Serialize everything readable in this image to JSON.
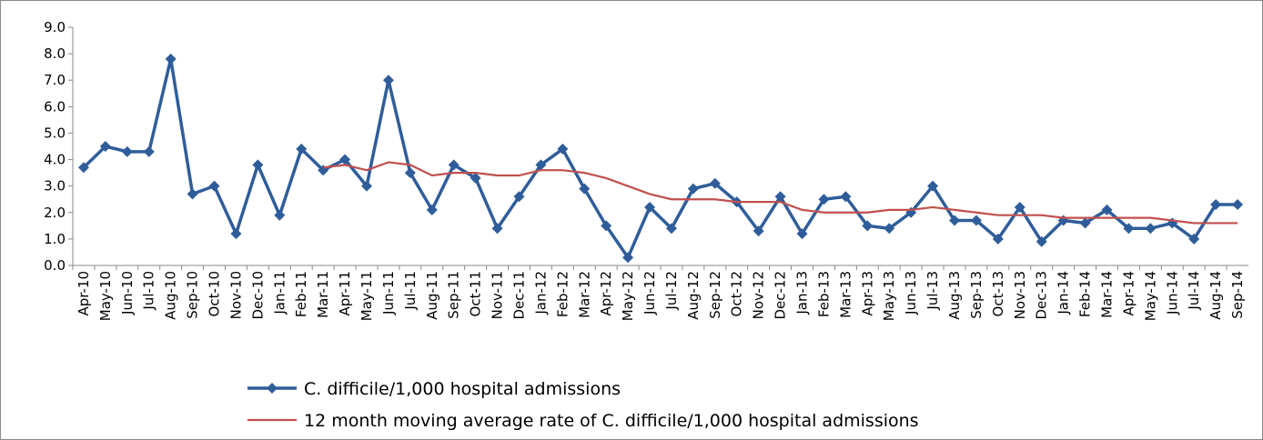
{
  "chart_data": {
    "type": "line",
    "categories": [
      "Apr-10",
      "May-10",
      "Jun-10",
      "Jul-10",
      "Aug-10",
      "Sep-10",
      "Oct-10",
      "Nov-10",
      "Dec-10",
      "Jan-11",
      "Feb-11",
      "Mar-11",
      "Apr-11",
      "May-11",
      "Jun-11",
      "Jul-11",
      "Aug-11",
      "Sep-11",
      "Oct-11",
      "Nov-11",
      "Dec-11",
      "Jan-12",
      "Feb-12",
      "Mar-12",
      "Apr-12",
      "May-12",
      "Jun-12",
      "Jul-12",
      "Aug-12",
      "Sep-12",
      "Oct-12",
      "Nov-12",
      "Dec-12",
      "Jan-13",
      "Feb-13",
      "Mar-13",
      "Apr-13",
      "May-13",
      "Jun-13",
      "Jul-13",
      "Aug-13",
      "Sep-13",
      "Oct-13",
      "Nov-13",
      "Dec-13",
      "Jan-14",
      "Feb-14",
      "Mar-14",
      "Apr-14",
      "May-14",
      "Jun-14",
      "Jul-14",
      "Aug-14",
      "Sep-14"
    ],
    "series": [
      {
        "name": "C. difficile/1,000 hospital admissions",
        "color": "#2f5d9a",
        "marker": "diamond",
        "values": [
          3.7,
          4.5,
          4.3,
          4.3,
          7.8,
          2.7,
          3.0,
          1.2,
          3.8,
          1.9,
          4.4,
          3.6,
          4.0,
          3.0,
          7.0,
          3.5,
          2.1,
          3.8,
          3.3,
          1.4,
          2.6,
          3.8,
          4.4,
          2.9,
          1.5,
          0.3,
          2.2,
          1.4,
          2.9,
          3.1,
          2.4,
          1.3,
          2.6,
          1.2,
          2.5,
          2.6,
          1.5,
          1.4,
          2.0,
          3.0,
          1.7,
          1.7,
          1.0,
          2.2,
          0.9,
          1.7,
          1.6,
          2.1,
          1.4,
          1.4,
          1.6,
          1.0,
          2.3,
          2.3
        ]
      },
      {
        "name": "12 month moving average rate of C. difficile/1,000 hospital admissions",
        "color": "#c0504d",
        "values": [
          null,
          null,
          null,
          null,
          null,
          null,
          null,
          null,
          null,
          null,
          null,
          3.7,
          3.8,
          3.6,
          3.9,
          3.8,
          3.4,
          3.5,
          3.5,
          3.4,
          3.4,
          3.6,
          3.6,
          3.5,
          3.3,
          3.0,
          2.7,
          2.5,
          2.5,
          2.5,
          2.4,
          2.4,
          2.4,
          2.1,
          2.0,
          2.0,
          2.0,
          2.1,
          2.1,
          2.2,
          2.1,
          2.0,
          1.9,
          1.9,
          1.9,
          1.8,
          1.8,
          1.8,
          1.8,
          1.8,
          1.7,
          1.6,
          1.6,
          1.6
        ]
      }
    ],
    "ylim": [
      0,
      9
    ],
    "yticks": [
      {
        "value": 0,
        "label": "0.0"
      },
      {
        "value": 1,
        "label": "1.0"
      },
      {
        "value": 2,
        "label": "2.0"
      },
      {
        "value": 3,
        "label": "3.0"
      },
      {
        "value": 4,
        "label": "4.0"
      },
      {
        "value": 5,
        "label": "5.0"
      },
      {
        "value": 6,
        "label": "6.0"
      },
      {
        "value": 7,
        "label": "7.0"
      },
      {
        "value": 8,
        "label": "8.0"
      },
      {
        "value": 9,
        "label": "9.0"
      }
    ],
    "grid": false,
    "legend": "bottom"
  }
}
